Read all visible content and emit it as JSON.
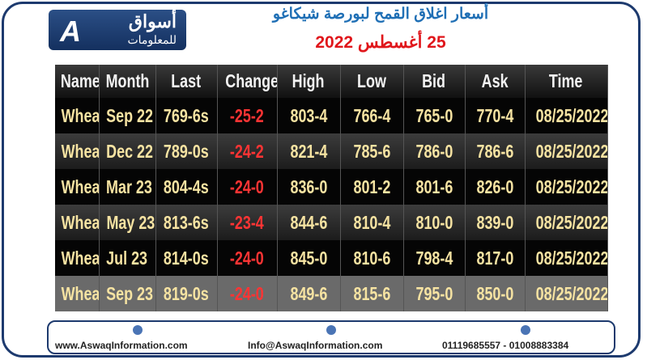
{
  "header": {
    "logo_text": "أسواق",
    "logo_subtext": "للمعلومات",
    "title": "أسعار اغلاق القمح لبورصة شيكاغو",
    "date": "25 أغسطس 2022"
  },
  "table": {
    "columns": [
      "Name",
      "Month",
      "Last",
      "Change",
      "High",
      "Low",
      "Bid",
      "Ask",
      "Time"
    ],
    "rows": [
      [
        "Wheat",
        "Sep 22",
        "769-6s",
        "-25-2",
        "803-4",
        "766-4",
        "765-0",
        "770-4",
        "08/25/2022"
      ],
      [
        "Wheat",
        "Dec 22",
        "789-0s",
        "-24-2",
        "821-4",
        "785-6",
        "786-0",
        "786-6",
        "08/25/2022"
      ],
      [
        "Wheat",
        "Mar 23",
        "804-4s",
        "-24-0",
        "836-0",
        "801-2",
        "801-6",
        "826-0",
        "08/25/2022"
      ],
      [
        "Wheat",
        "May 23",
        "813-6s",
        "-23-4",
        "844-6",
        "810-4",
        "810-0",
        "839-0",
        "08/25/2022"
      ],
      [
        "Wheat",
        "Jul 23",
        "814-0s",
        "-24-0",
        "845-0",
        "810-6",
        "798-4",
        "817-0",
        "08/25/2022"
      ],
      [
        "Wheat",
        "Sep 23",
        "819-0s",
        "-24-0",
        "849-6",
        "815-6",
        "795-0",
        "850-0",
        "08/25/2022"
      ]
    ]
  },
  "footer": {
    "website": "www.AswaqInformation.com",
    "email": "Info@AswaqInformation.com",
    "phone": "01119685557 - 01008883384"
  }
}
